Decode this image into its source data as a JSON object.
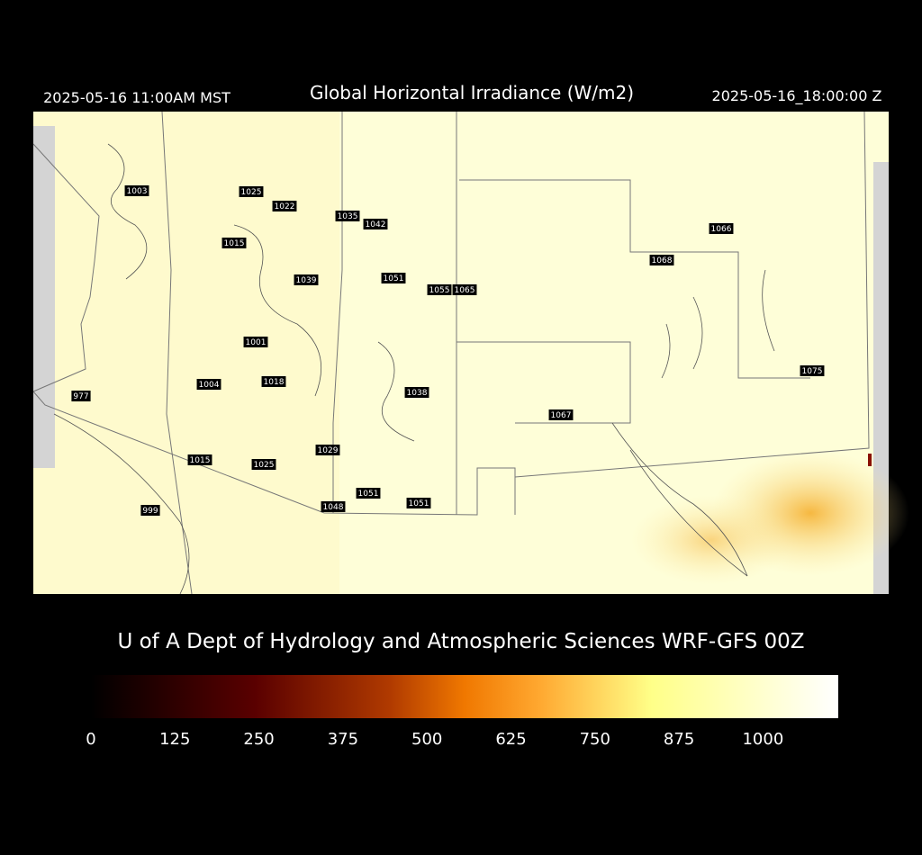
{
  "header": {
    "valid_local": "2025-05-16 11:00AM MST",
    "title": "Global Horizontal Irradiance (W/m2)",
    "valid_utc": "2025-05-16_18:00:00 Z"
  },
  "map": {
    "labels": [
      1003,
      1025,
      1022,
      1035,
      1042,
      1015,
      1066,
      1068,
      1039,
      1051,
      1055,
      1065,
      1001,
      1075,
      1004,
      1018,
      977,
      1038,
      1067,
      1029,
      1015,
      1025,
      1051,
      1048,
      1051,
      999
    ]
  },
  "footer": {
    "credit": "U of A Dept of Hydrology and Atmospheric Sciences WRF-GFS 00Z"
  },
  "colorbar": {
    "lim": [
      0,
      1112
    ],
    "ticks": [
      0,
      125,
      250,
      375,
      500,
      625,
      750,
      875,
      1000
    ]
  }
}
